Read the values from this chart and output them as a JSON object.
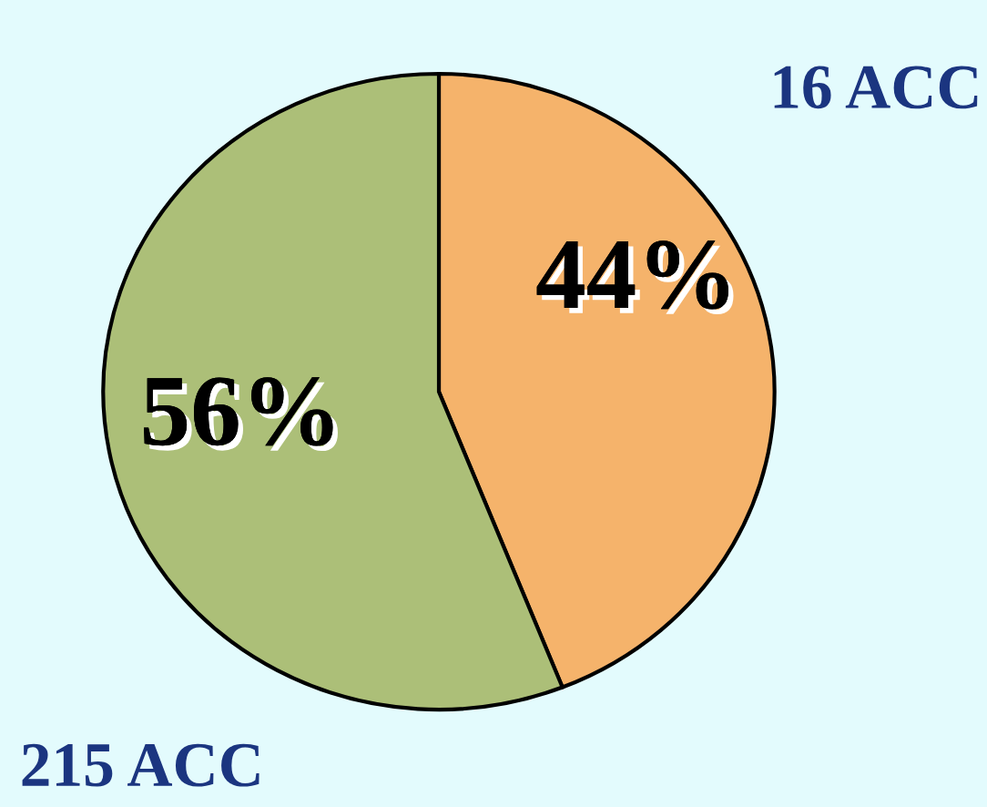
{
  "chart_data": {
    "type": "pie",
    "categories": [
      "16 ACC",
      "215 ACC"
    ],
    "values": [
      44,
      56
    ],
    "colors": [
      "#f5b36b",
      "#acbf78"
    ],
    "value_labels": [
      "44%",
      "56%"
    ],
    "legend": false
  }
}
